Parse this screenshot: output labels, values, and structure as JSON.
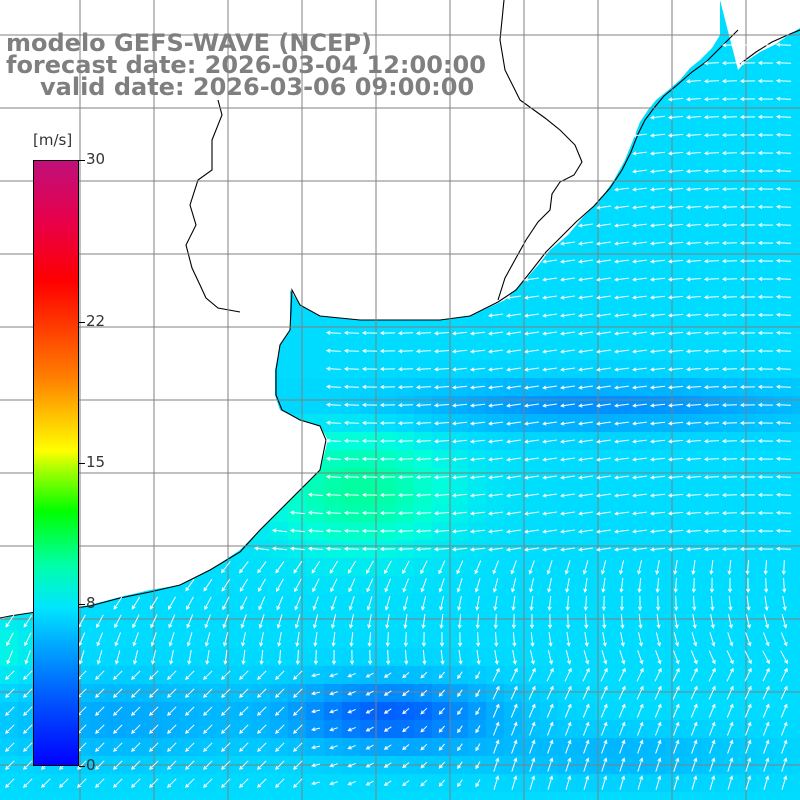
{
  "title": {
    "model": "modelo GEFS-WAVE (NCEP)",
    "forecast": "forecast date: 2026-03-04 12:00:00",
    "valid": "valid date: 2026-03-06 09:00:00"
  },
  "colorbar": {
    "unit": "[m/s]",
    "min": 0,
    "max": 30,
    "ticks": [
      {
        "value": 0,
        "label": "0"
      },
      {
        "value": 8,
        "label": "8"
      },
      {
        "value": 15,
        "label": "15"
      },
      {
        "value": 22,
        "label": "22"
      },
      {
        "value": 30,
        "label": "30"
      }
    ]
  },
  "map": {
    "field": "wind speed",
    "land_color": "#ffffff",
    "grid_color": "#808080",
    "coast_color": "#000000"
  }
}
